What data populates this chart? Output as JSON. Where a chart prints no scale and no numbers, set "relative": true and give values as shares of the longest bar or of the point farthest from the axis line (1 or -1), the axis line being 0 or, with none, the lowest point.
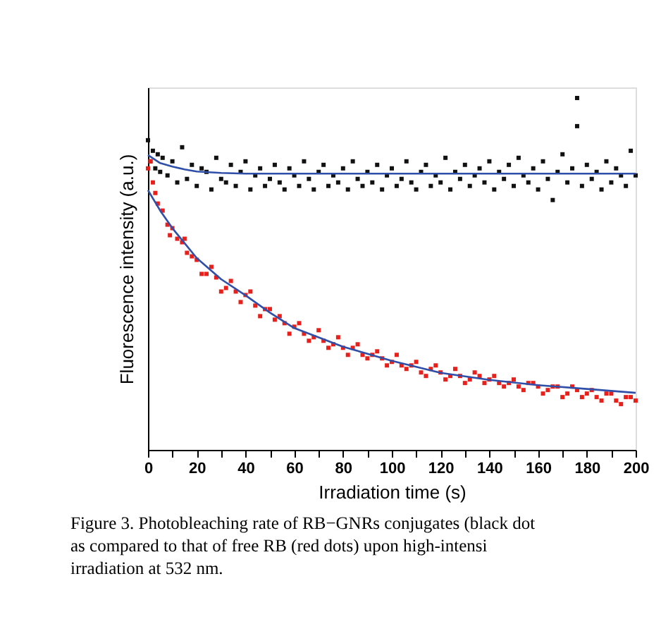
{
  "chart_data": {
    "type": "scatter",
    "relative": true,
    "xlabel": "Irradiation time (s)",
    "ylabel": "Fluorescence intensity (a.u.)",
    "tick_labels": "x",
    "grid": false,
    "xlim": [
      0,
      200
    ],
    "xticks": [
      0,
      {
        "value": 10,
        "label": null
      },
      20,
      {
        "value": 30,
        "label": null
      },
      40,
      {
        "value": 50,
        "label": null
      },
      60,
      {
        "value": 70,
        "label": null
      },
      80,
      {
        "value": 90,
        "label": null
      },
      100,
      {
        "value": 110,
        "label": null
      },
      120,
      {
        "value": 130,
        "label": null
      },
      140,
      {
        "value": 150,
        "label": null
      },
      160,
      {
        "value": 170,
        "label": null
      },
      180,
      {
        "value": 190,
        "label": null
      },
      200
    ],
    "annotations": [
      "Figure 3. Photobleaching rate of RB−GNRs conjugates (black dot",
      "as compared to that of free RB (red dots) upon high-intensi",
      "irradiation at 532 nm."
    ],
    "series": [
      {
        "marker": "square",
        "color": "#111111",
        "x": [
          0,
          1,
          2,
          3,
          4,
          5,
          6,
          8,
          10,
          12,
          14,
          16,
          18,
          20,
          22,
          24,
          26,
          28,
          30,
          32,
          34,
          36,
          38,
          40,
          42,
          44,
          46,
          48,
          50,
          52,
          54,
          56,
          58,
          60,
          62,
          64,
          66,
          68,
          70,
          72,
          74,
          76,
          78,
          80,
          82,
          84,
          86,
          88,
          90,
          92,
          94,
          96,
          98,
          100,
          102,
          104,
          106,
          108,
          110,
          112,
          114,
          116,
          118,
          120,
          122,
          124,
          126,
          128,
          130,
          132,
          134,
          136,
          138,
          140,
          142,
          144,
          146,
          148,
          150,
          152,
          154,
          156,
          158,
          160,
          162,
          164,
          166,
          168,
          170,
          172,
          174,
          176,
          176,
          178,
          180,
          182,
          184,
          186,
          188,
          190,
          192,
          194,
          196,
          198,
          200
        ],
        "values": [
          0.88,
          0.82,
          0.85,
          0.8,
          0.84,
          0.79,
          0.83,
          0.78,
          0.82,
          0.76,
          0.86,
          0.77,
          0.81,
          0.75,
          0.8,
          0.79,
          0.74,
          0.83,
          0.77,
          0.76,
          0.81,
          0.75,
          0.79,
          0.82,
          0.74,
          0.78,
          0.8,
          0.75,
          0.77,
          0.81,
          0.76,
          0.74,
          0.8,
          0.78,
          0.75,
          0.82,
          0.77,
          0.74,
          0.79,
          0.81,
          0.75,
          0.78,
          0.76,
          0.8,
          0.74,
          0.82,
          0.77,
          0.75,
          0.79,
          0.76,
          0.81,
          0.74,
          0.78,
          0.8,
          0.75,
          0.77,
          0.82,
          0.76,
          0.74,
          0.79,
          0.81,
          0.75,
          0.78,
          0.76,
          0.83,
          0.74,
          0.79,
          0.77,
          0.81,
          0.75,
          0.78,
          0.8,
          0.76,
          0.82,
          0.74,
          0.79,
          0.77,
          0.81,
          0.75,
          0.83,
          0.78,
          0.76,
          0.8,
          0.74,
          0.82,
          0.77,
          0.71,
          0.79,
          0.84,
          0.76,
          0.8,
          1.0,
          0.92,
          0.75,
          0.81,
          0.77,
          0.79,
          0.74,
          0.82,
          0.76,
          0.8,
          0.78,
          0.75,
          0.85,
          0.78
        ]
      },
      {
        "marker": "square",
        "color": "#e8201c",
        "x": [
          0,
          1,
          2,
          3,
          4,
          6,
          8,
          9,
          10,
          12,
          14,
          15,
          16,
          18,
          20,
          22,
          24,
          26,
          28,
          30,
          32,
          34,
          36,
          38,
          40,
          42,
          44,
          46,
          48,
          50,
          52,
          54,
          56,
          58,
          60,
          62,
          64,
          66,
          68,
          70,
          72,
          74,
          76,
          78,
          80,
          82,
          84,
          86,
          88,
          90,
          92,
          94,
          96,
          98,
          100,
          102,
          104,
          106,
          108,
          110,
          112,
          114,
          116,
          118,
          120,
          122,
          124,
          126,
          128,
          130,
          132,
          134,
          136,
          138,
          140,
          142,
          144,
          146,
          148,
          150,
          152,
          154,
          156,
          158,
          160,
          162,
          164,
          166,
          168,
          170,
          172,
          174,
          176,
          178,
          180,
          182,
          184,
          186,
          188,
          190,
          192,
          194,
          196,
          198,
          200
        ],
        "values": [
          0.8,
          0.82,
          0.76,
          0.73,
          0.7,
          0.68,
          0.64,
          0.61,
          0.63,
          0.6,
          0.59,
          0.6,
          0.56,
          0.55,
          0.54,
          0.5,
          0.5,
          0.52,
          0.49,
          0.45,
          0.46,
          0.48,
          0.45,
          0.42,
          0.44,
          0.45,
          0.41,
          0.38,
          0.4,
          0.4,
          0.37,
          0.38,
          0.36,
          0.33,
          0.35,
          0.36,
          0.33,
          0.31,
          0.32,
          0.34,
          0.31,
          0.29,
          0.3,
          0.32,
          0.29,
          0.27,
          0.29,
          0.3,
          0.27,
          0.26,
          0.27,
          0.28,
          0.26,
          0.24,
          0.25,
          0.27,
          0.24,
          0.23,
          0.24,
          0.25,
          0.22,
          0.21,
          0.23,
          0.24,
          0.22,
          0.2,
          0.21,
          0.23,
          0.21,
          0.19,
          0.2,
          0.22,
          0.21,
          0.19,
          0.2,
          0.21,
          0.19,
          0.18,
          0.19,
          0.2,
          0.18,
          0.17,
          0.19,
          0.19,
          0.18,
          0.16,
          0.17,
          0.18,
          0.18,
          0.15,
          0.16,
          0.18,
          0.17,
          0.15,
          0.16,
          0.17,
          0.15,
          0.14,
          0.16,
          0.16,
          0.14,
          0.13,
          0.15,
          0.15,
          0.14
        ]
      },
      {
        "type": "line",
        "color": "#2f4fa8",
        "x": [
          0,
          5,
          10,
          15,
          20,
          30,
          40,
          60,
          80,
          100,
          120,
          140,
          160,
          180,
          200
        ],
        "values": [
          0.838,
          0.815,
          0.805,
          0.797,
          0.791,
          0.787,
          0.785,
          0.785,
          0.785,
          0.785,
          0.785,
          0.785,
          0.785,
          0.785,
          0.785
        ]
      },
      {
        "type": "line",
        "color": "#2f4fa8",
        "x": [
          0,
          5,
          10,
          20,
          30,
          40,
          50,
          60,
          80,
          100,
          120,
          140,
          160,
          180,
          200
        ],
        "values": [
          0.738,
          0.68,
          0.63,
          0.545,
          0.485,
          0.439,
          0.39,
          0.346,
          0.293,
          0.253,
          0.219,
          0.199,
          0.184,
          0.173,
          0.162
        ]
      }
    ]
  }
}
